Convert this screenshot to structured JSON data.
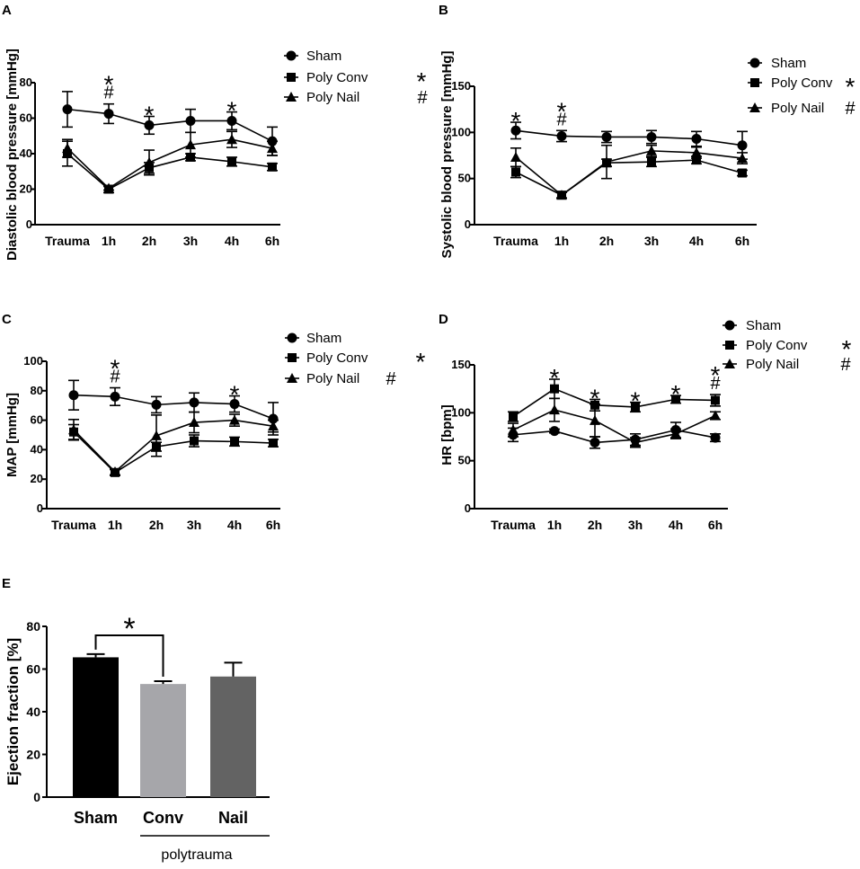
{
  "figure": {
    "panels": [
      "A",
      "B",
      "C",
      "D",
      "E"
    ]
  },
  "chart_data": [
    {
      "panel": "A",
      "type": "line",
      "ylabel": "Diastolic blood pressure [mmHg]",
      "xlabel": "",
      "categories": [
        "Trauma",
        "1h",
        "2h",
        "3h",
        "4h",
        "6h"
      ],
      "ylim": [
        0,
        80
      ],
      "yticks": [
        0,
        20,
        40,
        60,
        80
      ],
      "legend": {
        "position": "top-right"
      },
      "series": [
        {
          "name": "Sham",
          "marker": "circle",
          "suffix": "",
          "values": [
            65,
            62.5,
            56,
            58.5,
            58.5,
            47
          ],
          "errors": [
            10,
            5.5,
            5,
            6.5,
            5,
            8
          ]
        },
        {
          "name": "Poly Conv",
          "marker": "square",
          "suffix": "*",
          "values": [
            40,
            20,
            32,
            38,
            35.5,
            32.5
          ],
          "errors": [
            7,
            2,
            3,
            2,
            2.5,
            2
          ]
        },
        {
          "name": "Poly Nail",
          "marker": "triangle",
          "suffix": "#",
          "values": [
            43,
            20.5,
            35,
            45,
            48,
            43
          ],
          "errors": [
            5,
            1,
            7,
            7,
            4.5,
            4
          ]
        }
      ],
      "annotations": [
        {
          "index": 1,
          "lines": [
            "*",
            "#"
          ]
        },
        {
          "index": 2,
          "lines": [
            "*"
          ]
        },
        {
          "index": 4,
          "lines": [
            "*"
          ]
        }
      ]
    },
    {
      "panel": "B",
      "type": "line",
      "ylabel": "Systolic blood pressure [mmHg]",
      "xlabel": "",
      "categories": [
        "Trauma",
        "1h",
        "2h",
        "3h",
        "4h",
        "6h"
      ],
      "ylim": [
        0,
        150
      ],
      "yticks": [
        0,
        50,
        100,
        150
      ],
      "legend": {
        "position": "top-right"
      },
      "series": [
        {
          "name": "Sham",
          "marker": "circle",
          "suffix": "",
          "values": [
            102,
            96,
            95,
            95,
            93,
            86
          ],
          "errors": [
            9,
            6,
            6,
            7,
            8,
            15
          ]
        },
        {
          "name": "Poly Conv",
          "marker": "square",
          "suffix": "*",
          "values": [
            57,
            32,
            67,
            68,
            70,
            56
          ],
          "errors": [
            6,
            3,
            4,
            5,
            4,
            3
          ]
        },
        {
          "name": "Poly Nail",
          "marker": "triangle",
          "suffix": "#",
          "values": [
            73,
            32,
            68,
            80,
            78,
            72
          ],
          "errors": [
            10,
            3,
            18,
            6,
            6,
            6
          ]
        }
      ],
      "annotations": [
        {
          "index": 0,
          "lines": [
            "*"
          ]
        },
        {
          "index": 1,
          "lines": [
            "*",
            "#"
          ]
        }
      ]
    },
    {
      "panel": "C",
      "type": "line",
      "ylabel": "MAP [mmHg]",
      "xlabel": "",
      "categories": [
        "Trauma",
        "1h",
        "2h",
        "3h",
        "4h",
        "6h"
      ],
      "ylim": [
        0,
        100
      ],
      "yticks": [
        0,
        20,
        40,
        60,
        80,
        100
      ],
      "legend": {
        "position": "top-right"
      },
      "series": [
        {
          "name": "Sham",
          "marker": "circle",
          "suffix": "",
          "values": [
            77,
            76,
            70.5,
            72,
            71,
            61
          ],
          "errors": [
            10,
            6,
            5.5,
            6.5,
            5.5,
            11
          ]
        },
        {
          "name": "Poly Conv",
          "marker": "square",
          "suffix": "*",
          "values": [
            52,
            24.5,
            42,
            46,
            45.5,
            44.5
          ],
          "errors": [
            5,
            2,
            3,
            4,
            3,
            2.5
          ]
        },
        {
          "name": "Poly Nail",
          "marker": "triangle",
          "suffix": "#",
          "values": [
            53.5,
            25,
            49.5,
            58.5,
            60,
            56
          ],
          "errors": [
            7,
            2,
            14,
            7,
            4,
            4
          ]
        }
      ],
      "annotations": [
        {
          "index": 1,
          "lines": [
            "*",
            "#"
          ]
        },
        {
          "index": 4,
          "lines": [
            "*"
          ]
        }
      ]
    },
    {
      "panel": "D",
      "type": "line",
      "ylabel": "HR [bpm]",
      "xlabel": "",
      "categories": [
        "Trauma",
        "1h",
        "2h",
        "3h",
        "4h",
        "6h"
      ],
      "ylim": [
        0,
        150
      ],
      "yticks": [
        0,
        50,
        100,
        150
      ],
      "legend": {
        "position": "top-right"
      },
      "series": [
        {
          "name": "Sham",
          "marker": "circle",
          "suffix": "",
          "values": [
            77,
            81,
            69,
            72,
            82,
            74
          ],
          "errors": [
            7,
            2,
            6,
            6,
            8,
            4
          ]
        },
        {
          "name": "Poly Conv",
          "marker": "square",
          "suffix": "*",
          "values": [
            96,
            125,
            108,
            106,
            114,
            113
          ],
          "errors": [
            5,
            10,
            6,
            5,
            4,
            6
          ]
        },
        {
          "name": "Poly Nail",
          "marker": "triangle",
          "suffix": "#",
          "values": [
            82,
            103,
            92,
            69,
            78,
            97
          ],
          "errors": [
            7,
            12,
            17,
            5,
            5,
            4
          ]
        }
      ],
      "annotations": [
        {
          "index": 1,
          "lines": [
            "*"
          ]
        },
        {
          "index": 2,
          "lines": [
            "*"
          ]
        },
        {
          "index": 3,
          "lines": [
            "*"
          ]
        },
        {
          "index": 4,
          "lines": [
            "*"
          ]
        },
        {
          "index": 5,
          "lines": [
            "*",
            "#"
          ]
        }
      ]
    },
    {
      "panel": "E",
      "type": "bar",
      "ylabel": "Ejection fraction [%]",
      "xlabel": "",
      "categories": [
        "Sham",
        "Conv",
        "Nail"
      ],
      "values": [
        65.5,
        53,
        56.5
      ],
      "errors": [
        1.5,
        1.3,
        6.5
      ],
      "colors": [
        "#000000",
        "#a6a6aa",
        "#636363"
      ],
      "ylim": [
        0,
        80
      ],
      "yticks": [
        0,
        20,
        40,
        60,
        80
      ],
      "group_label": "polytrauma",
      "group_indices": [
        1,
        2
      ],
      "significance": {
        "from": 0,
        "to": 1,
        "label": "*"
      }
    }
  ]
}
